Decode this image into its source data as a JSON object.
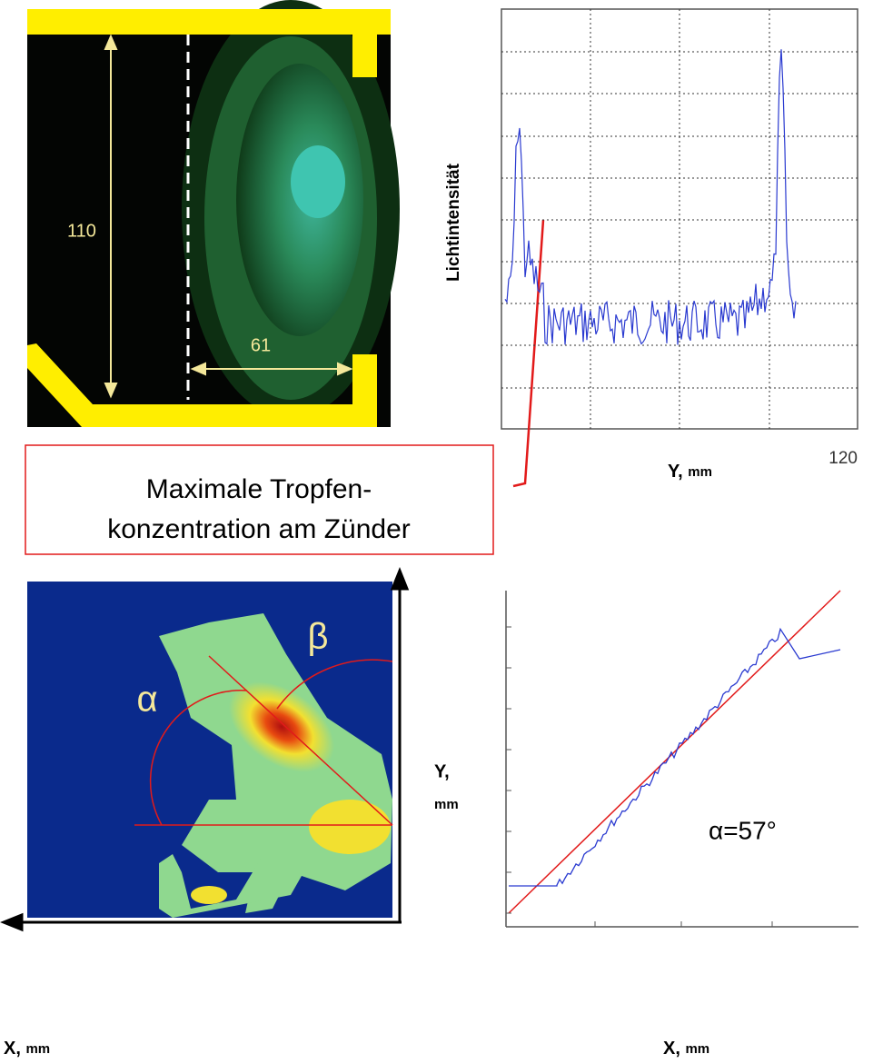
{
  "top_image": {
    "height_label": "110",
    "width_label": "61"
  },
  "intensity_plot": {
    "y_label": "Lichtintensität",
    "x_end_label": "120",
    "x_label": {
      "letter": "Y,",
      "unit": "mm"
    }
  },
  "callout": {
    "lines": [
      "Maximale Tropfen-",
      "konzentration am Zünder"
    ]
  },
  "bottom_image": {
    "alpha": "α",
    "beta": "β",
    "y_label": {
      "letter": "Y,",
      "unit": "mm"
    },
    "x_label": {
      "letter": "X,",
      "unit": "mm"
    }
  },
  "angle_plot": {
    "annotation": "α=57°",
    "x_label": {
      "letter": "X,",
      "unit": "mm"
    }
  }
}
